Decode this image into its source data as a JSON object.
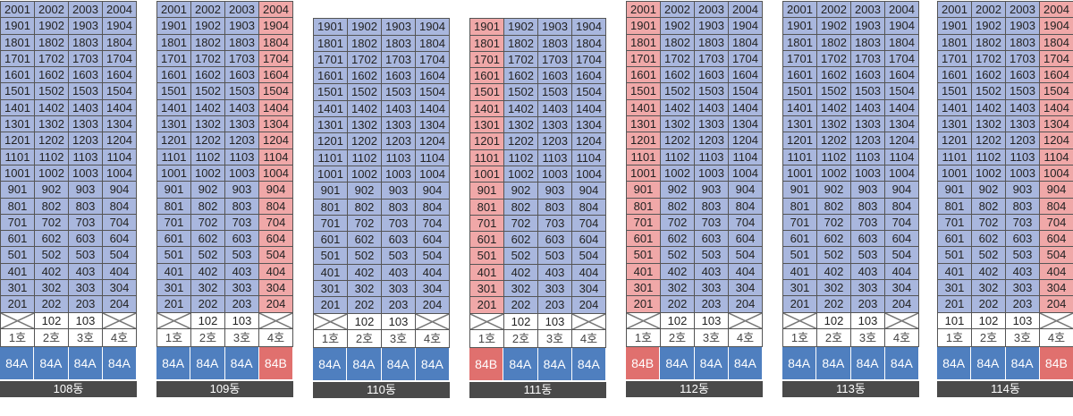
{
  "colors": {
    "sale_blue": "#a9b7de",
    "highlight_red": "#f0a8a8",
    "type_84A": "#4f7fbf",
    "type_84B": "#e0706e",
    "label_bg": "#4a4a4a"
  },
  "buildings": [
    {
      "name": "108동",
      "top_floor": 20,
      "low_floor": 2,
      "red_cols": [],
      "pilotis": [
        "",
        "102",
        "103",
        ""
      ],
      "ho": [
        "1호",
        "2호",
        "3호",
        "4호"
      ],
      "types": [
        "84A",
        "84A",
        "84A",
        "84A"
      ]
    },
    {
      "name": "109동",
      "top_floor": 20,
      "low_floor": 2,
      "red_cols": [
        3
      ],
      "pilotis": [
        "",
        "102",
        "103",
        ""
      ],
      "ho": [
        "1호",
        "2호",
        "3호",
        "4호"
      ],
      "types": [
        "84A",
        "84A",
        "84A",
        "84B"
      ]
    },
    {
      "name": "110동",
      "top_floor": 19,
      "low_floor": 2,
      "red_cols": [],
      "pilotis": [
        "",
        "102",
        "103",
        ""
      ],
      "ho": [
        "1호",
        "2호",
        "3호",
        "4호"
      ],
      "types": [
        "84A",
        "84A",
        "84A",
        "84A"
      ]
    },
    {
      "name": "111동",
      "top_floor": 19,
      "low_floor": 2,
      "red_cols": [
        0
      ],
      "pilotis": [
        "",
        "102",
        "103",
        ""
      ],
      "ho": [
        "1호",
        "2호",
        "3호",
        "4호"
      ],
      "types": [
        "84B",
        "84A",
        "84A",
        "84A"
      ]
    },
    {
      "name": "112동",
      "top_floor": 20,
      "low_floor": 2,
      "red_cols": [
        0
      ],
      "pilotis": [
        "",
        "102",
        "103",
        ""
      ],
      "ho": [
        "1호",
        "2호",
        "3호",
        "4호"
      ],
      "types": [
        "84B",
        "84A",
        "84A",
        "84A"
      ]
    },
    {
      "name": "113동",
      "top_floor": 20,
      "low_floor": 2,
      "red_cols": [],
      "pilotis": [
        "",
        "102",
        "103",
        ""
      ],
      "ho": [
        "1호",
        "2호",
        "3호",
        "4호"
      ],
      "types": [
        "84A",
        "84A",
        "84A",
        "84A"
      ]
    },
    {
      "name": "114동",
      "top_floor": 20,
      "low_floor": 2,
      "red_cols": [
        3
      ],
      "pilotis": [
        "101",
        "102",
        "103",
        ""
      ],
      "ho": [
        "1호",
        "2호",
        "3호",
        "4호"
      ],
      "types": [
        "84A",
        "84A",
        "84A",
        "84B"
      ]
    }
  ]
}
